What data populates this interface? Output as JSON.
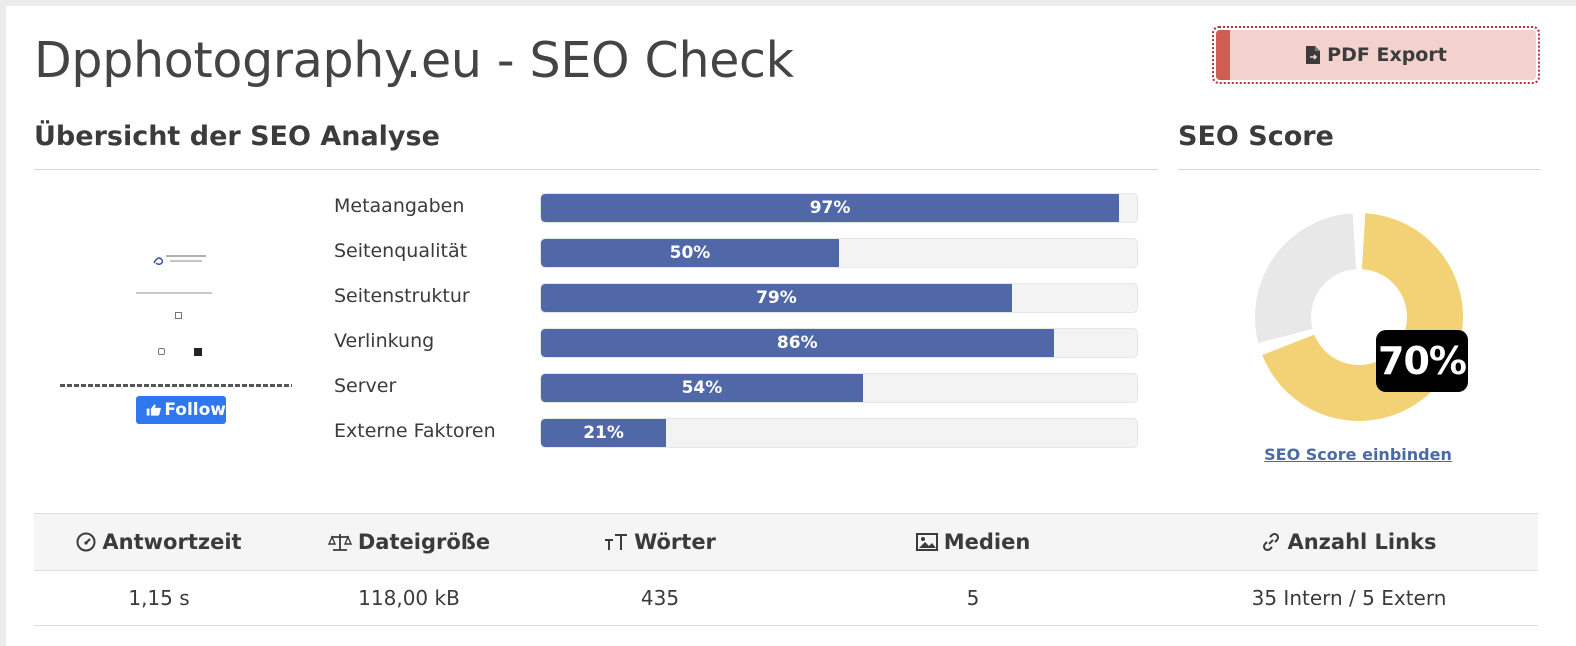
{
  "header": {
    "title": "Dpphotography.eu - SEO Check",
    "pdf_button_label": "PDF Export"
  },
  "overview": {
    "heading": "Übersicht der SEO Analyse",
    "thumbnail": {
      "follow_label": "Follow"
    },
    "metrics": [
      {
        "label": "Metaangaben",
        "value": 97,
        "display": "97%"
      },
      {
        "label": "Seitenqualität",
        "value": 50,
        "display": "50%"
      },
      {
        "label": "Seitenstruktur",
        "value": 79,
        "display": "79%"
      },
      {
        "label": "Verlinkung",
        "value": 86,
        "display": "86%"
      },
      {
        "label": "Server",
        "value": 54,
        "display": "54%"
      },
      {
        "label": "Externe Faktoren",
        "value": 21,
        "display": "21%"
      }
    ],
    "bar_color": "#5068a8"
  },
  "score": {
    "heading": "SEO Score",
    "value": 70,
    "display": "70%",
    "score_color": "#f2d275",
    "rest_color": "#e8e8e8",
    "embed_link": "SEO Score einbinden"
  },
  "stats": {
    "headers": [
      {
        "icon": "speedometer-icon",
        "label": "Antwortzeit"
      },
      {
        "icon": "balance-scale-icon",
        "label": "Dateigröße"
      },
      {
        "icon": "text-size-icon",
        "label": "Wörter"
      },
      {
        "icon": "image-icon",
        "label": "Medien"
      },
      {
        "icon": "link-icon",
        "label": "Anzahl Links"
      }
    ],
    "values": [
      "1,15 s",
      "118,00 kB",
      "435",
      "5",
      "35 Intern / 5 Extern"
    ]
  }
}
